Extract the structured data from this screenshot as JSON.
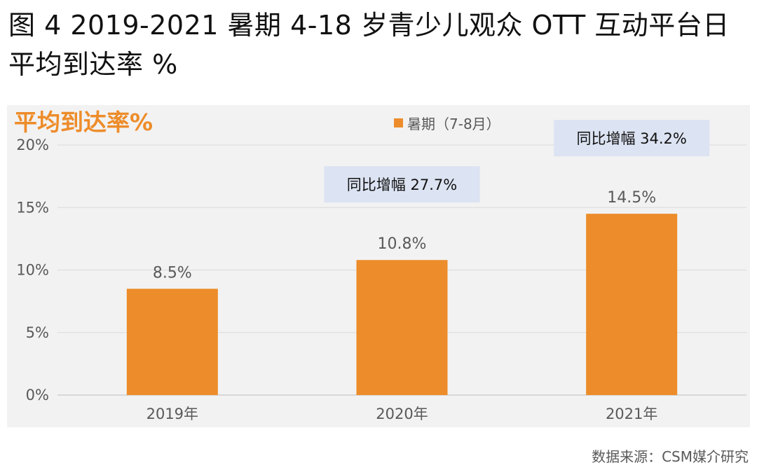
{
  "title": "图 4 2019-2021 暑期 4-18 岁青少儿观众 OTT 互动平台日平均到达率 %",
  "chart_heading": "平均到达率%",
  "source": "数据来源：CSM媒介研究",
  "colors": {
    "bar": "#ed8c2a",
    "heading": "#ed8c2a",
    "callout_bg": "#dce3f2",
    "axis_text": "#595959",
    "grid": "#d9d9d9"
  },
  "chart_data": {
    "type": "bar",
    "categories": [
      "2019年",
      "2020年",
      "2021年"
    ],
    "series": [
      {
        "name": "暑期（7-8月）",
        "values": [
          8.5,
          10.8,
          14.5
        ]
      }
    ],
    "value_labels": [
      "8.5%",
      "10.8%",
      "14.5%"
    ],
    "ylim": [
      0,
      20
    ],
    "yticks": [
      "0%",
      "5%",
      "10%",
      "15%",
      "20%"
    ],
    "ytick_values": [
      0,
      5,
      10,
      15,
      20
    ],
    "grid": true,
    "legend_position": "top",
    "annotations": [
      {
        "category": "2020年",
        "text": "同比增幅 27.7%"
      },
      {
        "category": "2021年",
        "text": "同比增幅 34.2%"
      }
    ]
  }
}
